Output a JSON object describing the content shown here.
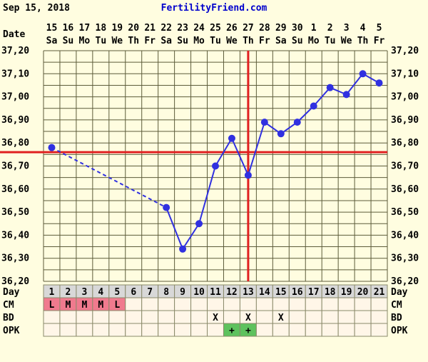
{
  "header": {
    "date": "Sep 15, 2018",
    "site": "FertilityFriend.com"
  },
  "row_labels": {
    "date": "Date",
    "day": "Day",
    "cm": "CM",
    "bd": "BD",
    "opk": "OPK"
  },
  "chart_data": {
    "type": "line",
    "dates": [
      "15",
      "16",
      "17",
      "18",
      "19",
      "20",
      "21",
      "22",
      "23",
      "24",
      "25",
      "26",
      "27",
      "28",
      "29",
      "30",
      "1",
      "2",
      "3",
      "4",
      "5"
    ],
    "weekdays": [
      "Sa",
      "Su",
      "Mo",
      "Tu",
      "We",
      "Th",
      "Fr",
      "Sa",
      "Su",
      "Mo",
      "Tu",
      "We",
      "Th",
      "Fr",
      "Sa",
      "Su",
      "Mo",
      "Tu",
      "We",
      "Th",
      "Fr"
    ],
    "cycle_days": [
      1,
      2,
      3,
      4,
      5,
      6,
      7,
      8,
      9,
      10,
      11,
      12,
      13,
      14,
      15,
      16,
      17,
      18,
      19,
      20,
      21
    ],
    "ylim": [
      36.2,
      37.2
    ],
    "y_ticks": [
      "36,20",
      "36,30",
      "36,40",
      "36,50",
      "36,60",
      "36,70",
      "36,80",
      "36,90",
      "37,00",
      "37,10",
      "37,20"
    ],
    "temperatures": [
      36.78,
      null,
      null,
      null,
      null,
      null,
      null,
      36.52,
      36.34,
      36.45,
      36.7,
      36.82,
      36.66,
      36.89,
      36.84,
      36.89,
      36.96,
      37.04,
      37.01,
      37.1,
      37.06
    ],
    "coverline": 36.76,
    "ovulation_day": 13,
    "grid": true,
    "colors": {
      "line": "#3030e0",
      "coverline": "#e02020",
      "grid": "#5c5c3a",
      "plot_bg": "#fffde0",
      "day_row": "#d8d8d8",
      "cm_period": "#f07a8e",
      "opk_positive": "#5ec25e",
      "row_bg": "#fff6e8"
    }
  },
  "cm": [
    "L",
    "M",
    "M",
    "M",
    "L",
    "",
    "",
    "",
    "",
    "",
    "",
    "",
    "",
    "",
    "",
    "",
    "",
    "",
    "",
    "",
    ""
  ],
  "bd": [
    "",
    "",
    "",
    "",
    "",
    "",
    "",
    "",
    "",
    "",
    "X",
    "",
    "X",
    "",
    "X",
    "",
    "",
    "",
    "",
    "",
    ""
  ],
  "opk": [
    "",
    "",
    "",
    "",
    "",
    "",
    "",
    "",
    "",
    "",
    "",
    "+",
    "+",
    "",
    "",
    "",
    "",
    "",
    "",
    "",
    ""
  ]
}
